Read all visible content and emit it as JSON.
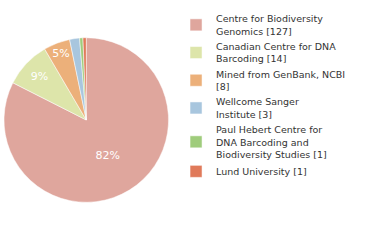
{
  "chart_data": {
    "type": "pie",
    "categories": [
      "Centre for Biodiversity Genomics [127]",
      "Canadian Centre for DNA Barcoding [14]",
      "Mined from GenBank, NCBI [8]",
      "Wellcome Sanger Institute [3]",
      "Paul Hebert Centre for DNA Barcoding and Biodiversity Studies [1]",
      "Lund University [1]"
    ],
    "values": [
      82.47,
      9.09,
      5.19,
      1.95,
      0.65,
      0.65
    ],
    "value_labels": [
      "82%",
      "9%",
      "5%",
      null,
      null,
      null
    ],
    "data_labels": true,
    "colors": [
      "#dfa69d",
      "#dde5aa",
      "#ecb07a",
      "#a8c6de",
      "#9fcc7c",
      "#e07a5a"
    ],
    "legend": "right"
  }
}
